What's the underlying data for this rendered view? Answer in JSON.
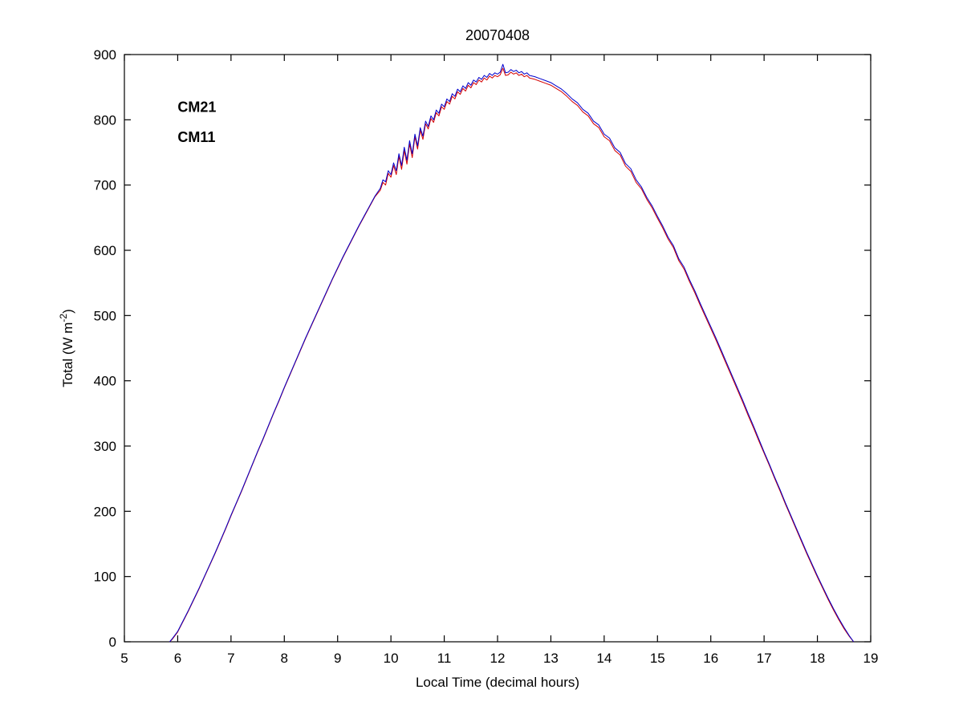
{
  "page": {
    "background": "#FFFFFF"
  },
  "chart_data": {
    "type": "line",
    "title": "20070408",
    "xlabel": "Local Time (decimal hours)",
    "ylabel": "Total (W m⁻²)",
    "ylabel_parts": {
      "pre": "Total (W m",
      "sup": "-2",
      "post": ")"
    },
    "xlim": [
      5,
      19
    ],
    "ylim": [
      0,
      900
    ],
    "xticks": [
      5,
      6,
      7,
      8,
      9,
      10,
      11,
      12,
      13,
      14,
      15,
      16,
      17,
      18,
      19
    ],
    "yticks": [
      0,
      100,
      200,
      300,
      400,
      500,
      600,
      700,
      800,
      900
    ],
    "grid": false,
    "axis_color": "#000000",
    "legend": {
      "position": "inside-top-left",
      "items": [
        {
          "label": "CM21",
          "color": "#0000CD",
          "x": 6.0,
          "y": 812
        },
        {
          "label": "CM11",
          "color": "#D40000",
          "x": 6.0,
          "y": 766
        }
      ]
    },
    "x": [
      5.85,
      5.9,
      6,
      6.1,
      6.2,
      6.3,
      6.4,
      6.5,
      6.6,
      6.7,
      6.8,
      6.9,
      7,
      7.1,
      7.2,
      7.3,
      7.4,
      7.5,
      7.6,
      7.7,
      7.8,
      7.9,
      8,
      8.1,
      8.2,
      8.3,
      8.4,
      8.5,
      8.6,
      8.7,
      8.8,
      8.9,
      9,
      9.1,
      9.2,
      9.3,
      9.4,
      9.5,
      9.6,
      9.7,
      9.8,
      9.85,
      9.9,
      9.95,
      10,
      10.05,
      10.1,
      10.15,
      10.2,
      10.25,
      10.3,
      10.35,
      10.4,
      10.45,
      10.5,
      10.55,
      10.6,
      10.65,
      10.7,
      10.75,
      10.8,
      10.85,
      10.9,
      10.95,
      11,
      11.05,
      11.1,
      11.15,
      11.2,
      11.25,
      11.3,
      11.35,
      11.4,
      11.45,
      11.5,
      11.55,
      11.6,
      11.65,
      11.7,
      11.75,
      11.8,
      11.85,
      11.9,
      11.95,
      12,
      12.05,
      12.1,
      12.15,
      12.2,
      12.25,
      12.3,
      12.35,
      12.4,
      12.45,
      12.5,
      12.55,
      12.6,
      12.7,
      12.8,
      12.9,
      13,
      13.1,
      13.2,
      13.3,
      13.4,
      13.5,
      13.6,
      13.7,
      13.8,
      13.9,
      14,
      14.1,
      14.2,
      14.3,
      14.4,
      14.5,
      14.6,
      14.7,
      14.8,
      14.9,
      15,
      15.1,
      15.2,
      15.3,
      15.4,
      15.5,
      15.6,
      15.7,
      15.8,
      15.9,
      16,
      16.1,
      16.2,
      16.3,
      16.4,
      16.5,
      16.6,
      16.7,
      16.8,
      16.9,
      17,
      17.1,
      17.2,
      17.3,
      17.4,
      17.5,
      17.6,
      17.7,
      17.8,
      17.9,
      18,
      18.1,
      18.2,
      18.3,
      18.4,
      18.5,
      18.6,
      18.68
    ],
    "series": [
      {
        "name": "CM21",
        "color": "#0000CD",
        "values": [
          0,
          5,
          16,
          32,
          48,
          65,
          82,
          100,
          118,
          136,
          155,
          174,
          194,
          213,
          232,
          252,
          272,
          292,
          311,
          331,
          351,
          370,
          390,
          409,
          428,
          447,
          466,
          484,
          502,
          520,
          538,
          556,
          573,
          590,
          606,
          622,
          638,
          653,
          668,
          683,
          695,
          708,
          705,
          722,
          716,
          734,
          722,
          748,
          730,
          758,
          738,
          768,
          748,
          778,
          760,
          788,
          775,
          798,
          790,
          806,
          800,
          815,
          810,
          824,
          820,
          832,
          828,
          840,
          836,
          847,
          843,
          852,
          848,
          857,
          853,
          861,
          858,
          865,
          862,
          868,
          865,
          871,
          868,
          872,
          870,
          873,
          885,
          872,
          873,
          877,
          874,
          876,
          872,
          874,
          870,
          872,
          868,
          866,
          863,
          860,
          857,
          852,
          847,
          840,
          832,
          826,
          816,
          810,
          798,
          792,
          778,
          772,
          757,
          750,
          733,
          725,
          708,
          697,
          681,
          668,
          652,
          637,
          620,
          607,
          587,
          574,
          555,
          538,
          519,
          501,
          483,
          465,
          446,
          427,
          408,
          389,
          370,
          350,
          331,
          311,
          291,
          272,
          252,
          233,
          213,
          194,
          175,
          156,
          137,
          119,
          101,
          84,
          67,
          51,
          36,
          22,
          9,
          0
        ]
      },
      {
        "name": "CM11",
        "color": "#D40000",
        "values": [
          0,
          4,
          15,
          31,
          47,
          64,
          81,
          99,
          117,
          135,
          154,
          173,
          193,
          212,
          231,
          251,
          271,
          291,
          310,
          330,
          350,
          369,
          389,
          408,
          427,
          446,
          465,
          483,
          501,
          519,
          537,
          555,
          572,
          589,
          605,
          621,
          637,
          652,
          667,
          682,
          692,
          704,
          700,
          718,
          712,
          730,
          716,
          744,
          724,
          753,
          732,
          763,
          742,
          774,
          755,
          784,
          770,
          794,
          786,
          802,
          796,
          811,
          806,
          820,
          816,
          828,
          824,
          836,
          832,
          843,
          839,
          848,
          844,
          853,
          849,
          857,
          854,
          861,
          858,
          864,
          861,
          867,
          864,
          868,
          866,
          869,
          879,
          868,
          869,
          873,
          870,
          872,
          868,
          870,
          866,
          868,
          864,
          862,
          859,
          856,
          853,
          848,
          843,
          836,
          828,
          822,
          812,
          806,
          794,
          788,
          774,
          768,
          753,
          746,
          729,
          721,
          704,
          694,
          678,
          665,
          649,
          634,
          617,
          604,
          584,
          571,
          552,
          535,
          516,
          498,
          480,
          462,
          443,
          424,
          405,
          386,
          367,
          347,
          328,
          308,
          289,
          270,
          250,
          231,
          211,
          192,
          173,
          154,
          135,
          117,
          99,
          82,
          65,
          49,
          34,
          20,
          8,
          0
        ]
      }
    ]
  }
}
